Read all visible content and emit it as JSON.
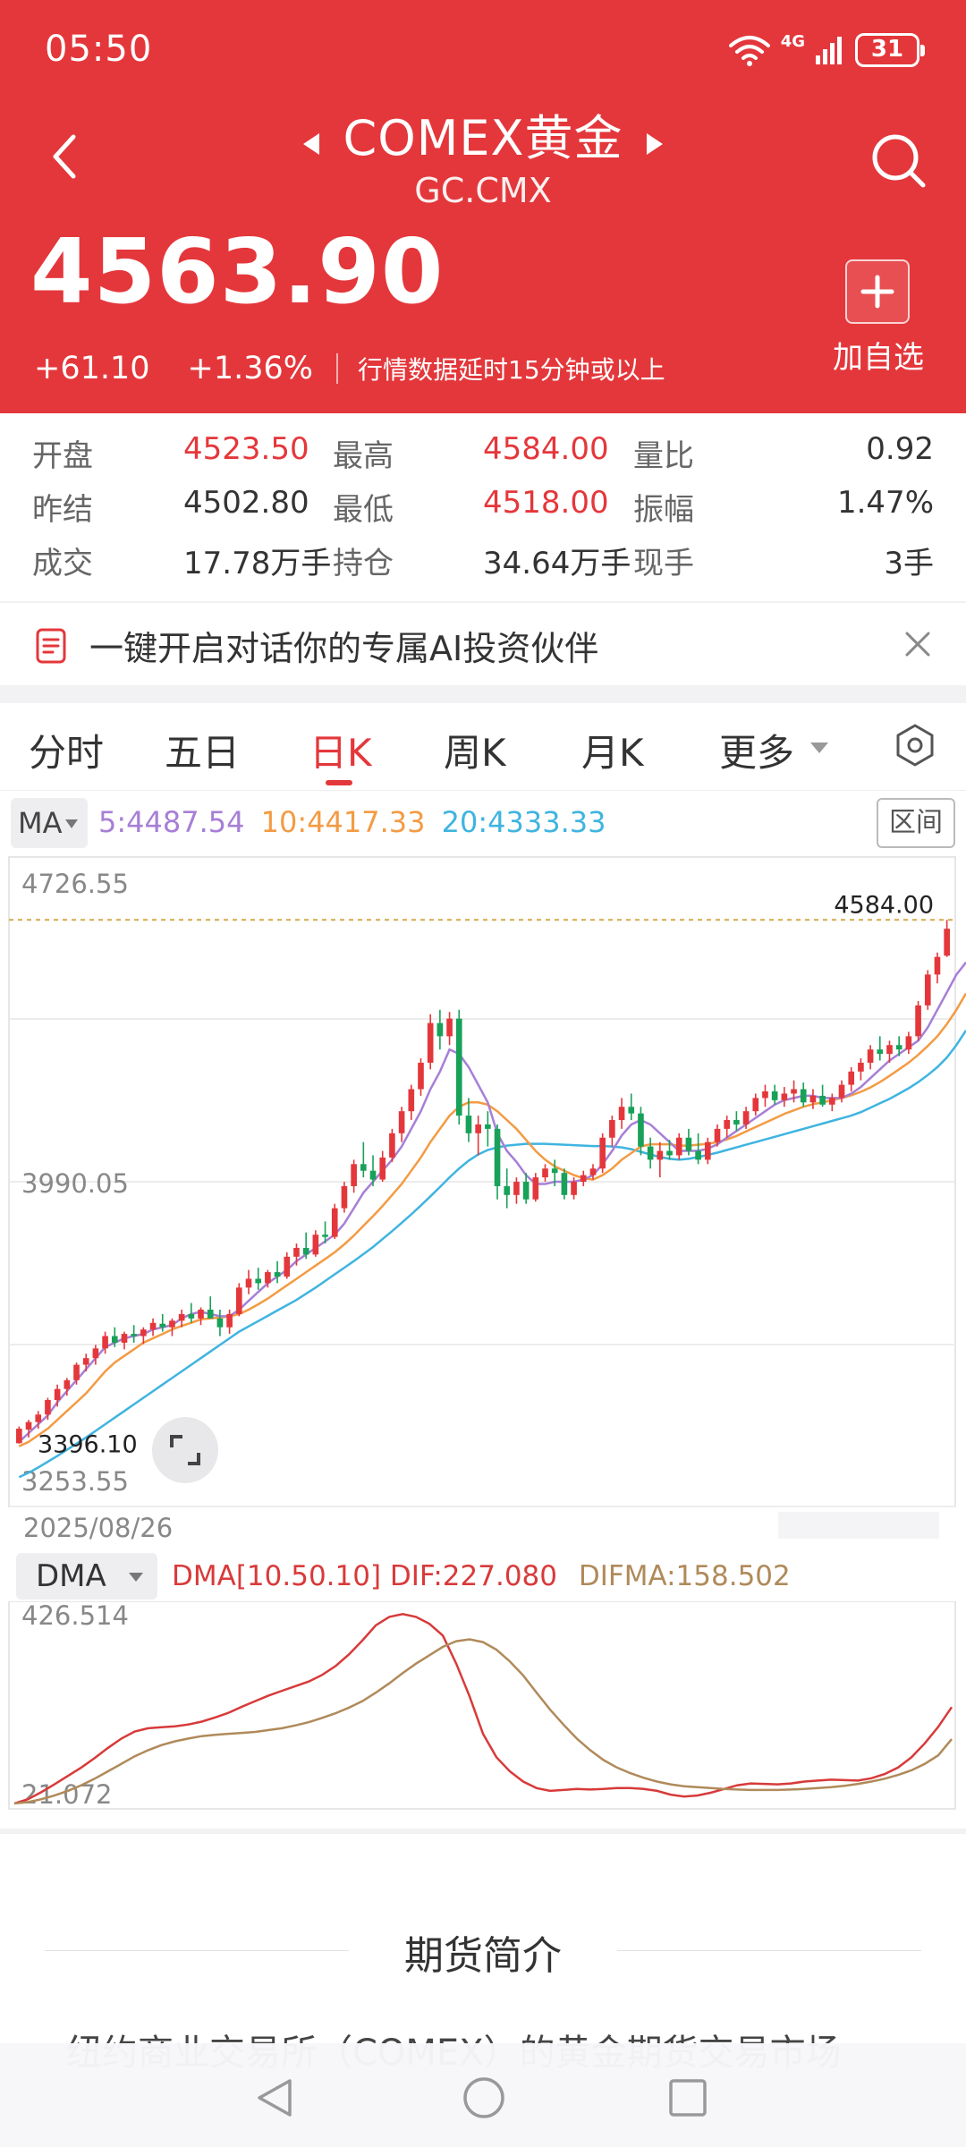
{
  "status_bar": {
    "time": "05:50",
    "network": "4G",
    "battery": "31"
  },
  "header": {
    "title": "COMEX黄金",
    "subtitle": "GC.CMX",
    "price": "4563.90",
    "change": "+61.10",
    "change_pct": "+1.36%",
    "delay_note": "行情数据延时15分钟或以上",
    "add_label": "加自选",
    "icons": {
      "back": "chevron-left",
      "prev": "triangle-left",
      "next": "triangle-right",
      "search": "search",
      "add": "plus"
    }
  },
  "stats": {
    "open_label": "开盘",
    "open": "4523.50",
    "high_label": "最高",
    "high": "4584.00",
    "vol_ratio_label": "量比",
    "vol_ratio": "0.92",
    "prev_settle_label": "昨结",
    "prev_settle": "4502.80",
    "low_label": "最低",
    "low": "4518.00",
    "amplitude_label": "振幅",
    "amplitude": "1.47%",
    "volume_label": "成交",
    "volume": "17.78万手",
    "open_interest_label": "持仓",
    "open_interest": "34.64万手",
    "current_label": "现手",
    "current": "3手"
  },
  "ai_banner": {
    "text": "一键开启对话你的专属AI投资伙伴"
  },
  "tabs": [
    {
      "label": "分时"
    },
    {
      "label": "五日"
    },
    {
      "label": "日K",
      "active": true
    },
    {
      "label": "周K"
    },
    {
      "label": "月K"
    },
    {
      "label": "更多"
    }
  ],
  "ma": {
    "selector": "MA",
    "ma5": "5:4487.54",
    "ma10": "10:4417.33",
    "ma20": "20:4333.33",
    "range_button": "区间"
  },
  "colors": {
    "up": "#e4373b",
    "down": "#18a159",
    "ma5": "#a77fd6",
    "ma10": "#f39b43",
    "ma20": "#3fb4e0",
    "dif": "#d83a3a",
    "difma": "#b08a5a"
  },
  "chart_data": [
    {
      "type": "candlestick",
      "y_ticks": [
        "4726.55",
        "3990.05",
        "3253.55"
      ],
      "ylim": [
        3253.55,
        4726.55
      ],
      "max_label": "4584.00",
      "min_label": "3396.10",
      "start_date": "2025/08/26",
      "candles": [
        {
          "o": 3397,
          "h": 3435,
          "l": 3396.1,
          "c": 3430
        },
        {
          "o": 3428,
          "h": 3450,
          "l": 3410,
          "c": 3445
        },
        {
          "o": 3445,
          "h": 3470,
          "l": 3430,
          "c": 3462
        },
        {
          "o": 3462,
          "h": 3500,
          "l": 3450,
          "c": 3495
        },
        {
          "o": 3495,
          "h": 3530,
          "l": 3480,
          "c": 3520
        },
        {
          "o": 3520,
          "h": 3545,
          "l": 3505,
          "c": 3540
        },
        {
          "o": 3540,
          "h": 3580,
          "l": 3530,
          "c": 3575
        },
        {
          "o": 3575,
          "h": 3600,
          "l": 3560,
          "c": 3590
        },
        {
          "o": 3590,
          "h": 3620,
          "l": 3575,
          "c": 3612
        },
        {
          "o": 3612,
          "h": 3650,
          "l": 3600,
          "c": 3640
        },
        {
          "o": 3640,
          "h": 3660,
          "l": 3615,
          "c": 3625
        },
        {
          "o": 3625,
          "h": 3650,
          "l": 3610,
          "c": 3645
        },
        {
          "o": 3645,
          "h": 3665,
          "l": 3625,
          "c": 3640
        },
        {
          "o": 3640,
          "h": 3660,
          "l": 3622,
          "c": 3655
        },
        {
          "o": 3655,
          "h": 3680,
          "l": 3640,
          "c": 3670
        },
        {
          "o": 3668,
          "h": 3690,
          "l": 3650,
          "c": 3660
        },
        {
          "o": 3660,
          "h": 3680,
          "l": 3640,
          "c": 3675
        },
        {
          "o": 3675,
          "h": 3700,
          "l": 3660,
          "c": 3690
        },
        {
          "o": 3690,
          "h": 3715,
          "l": 3670,
          "c": 3680
        },
        {
          "o": 3680,
          "h": 3705,
          "l": 3665,
          "c": 3700
        },
        {
          "o": 3700,
          "h": 3730,
          "l": 3690,
          "c": 3680
        },
        {
          "o": 3680,
          "h": 3700,
          "l": 3640,
          "c": 3660
        },
        {
          "o": 3660,
          "h": 3700,
          "l": 3645,
          "c": 3690
        },
        {
          "o": 3690,
          "h": 3760,
          "l": 3685,
          "c": 3750
        },
        {
          "o": 3750,
          "h": 3790,
          "l": 3735,
          "c": 3770
        },
        {
          "o": 3770,
          "h": 3795,
          "l": 3745,
          "c": 3760
        },
        {
          "o": 3760,
          "h": 3790,
          "l": 3750,
          "c": 3785
        },
        {
          "o": 3785,
          "h": 3810,
          "l": 3760,
          "c": 3775
        },
        {
          "o": 3775,
          "h": 3830,
          "l": 3770,
          "c": 3820
        },
        {
          "o": 3820,
          "h": 3850,
          "l": 3800,
          "c": 3840
        },
        {
          "o": 3840,
          "h": 3875,
          "l": 3815,
          "c": 3825
        },
        {
          "o": 3825,
          "h": 3880,
          "l": 3820,
          "c": 3870
        },
        {
          "o": 3870,
          "h": 3900,
          "l": 3850,
          "c": 3865
        },
        {
          "o": 3865,
          "h": 3940,
          "l": 3860,
          "c": 3930
        },
        {
          "o": 3930,
          "h": 3990,
          "l": 3920,
          "c": 3980
        },
        {
          "o": 3980,
          "h": 4040,
          "l": 3965,
          "c": 4030
        },
        {
          "o": 4030,
          "h": 4080,
          "l": 4000,
          "c": 4015
        },
        {
          "o": 4015,
          "h": 4050,
          "l": 3980,
          "c": 3995
        },
        {
          "o": 3995,
          "h": 4060,
          "l": 3990,
          "c": 4045
        },
        {
          "o": 4045,
          "h": 4110,
          "l": 4035,
          "c": 4100
        },
        {
          "o": 4100,
          "h": 4160,
          "l": 4080,
          "c": 4150
        },
        {
          "o": 4150,
          "h": 4210,
          "l": 4130,
          "c": 4200
        },
        {
          "o": 4200,
          "h": 4270,
          "l": 4185,
          "c": 4260
        },
        {
          "o": 4260,
          "h": 4370,
          "l": 4245,
          "c": 4350
        },
        {
          "o": 4350,
          "h": 4380,
          "l": 4290,
          "c": 4320
        },
        {
          "o": 4320,
          "h": 4375,
          "l": 4300,
          "c": 4360
        },
        {
          "o": 4360,
          "h": 4380,
          "l": 4120,
          "c": 4140
        },
        {
          "o": 4140,
          "h": 4180,
          "l": 4080,
          "c": 4100
        },
        {
          "o": 4100,
          "h": 4140,
          "l": 4050,
          "c": 4120
        },
        {
          "o": 4120,
          "h": 4150,
          "l": 4070,
          "c": 4110
        },
        {
          "o": 4110,
          "h": 4120,
          "l": 3950,
          "c": 3980
        },
        {
          "o": 3980,
          "h": 4020,
          "l": 3930,
          "c": 3960
        },
        {
          "o": 3960,
          "h": 4000,
          "l": 3940,
          "c": 3990
        },
        {
          "o": 3990,
          "h": 4010,
          "l": 3940,
          "c": 3950
        },
        {
          "o": 3950,
          "h": 4010,
          "l": 3945,
          "c": 4000
        },
        {
          "o": 4000,
          "h": 4030,
          "l": 3990,
          "c": 4020
        },
        {
          "o": 4020,
          "h": 4040,
          "l": 3980,
          "c": 4010
        },
        {
          "o": 4010,
          "h": 4020,
          "l": 3950,
          "c": 3960
        },
        {
          "o": 3960,
          "h": 4000,
          "l": 3950,
          "c": 3990
        },
        {
          "o": 3990,
          "h": 4015,
          "l": 3980,
          "c": 4005
        },
        {
          "o": 4005,
          "h": 4030,
          "l": 3995,
          "c": 4020
        },
        {
          "o": 4020,
          "h": 4100,
          "l": 4010,
          "c": 4090
        },
        {
          "o": 4090,
          "h": 4140,
          "l": 4070,
          "c": 4130
        },
        {
          "o": 4130,
          "h": 4180,
          "l": 4110,
          "c": 4160
        },
        {
          "o": 4160,
          "h": 4190,
          "l": 4130,
          "c": 4145
        },
        {
          "o": 4145,
          "h": 4160,
          "l": 4050,
          "c": 4070
        },
        {
          "o": 4070,
          "h": 4090,
          "l": 4020,
          "c": 4040
        },
        {
          "o": 4040,
          "h": 4080,
          "l": 4000,
          "c": 4060
        },
        {
          "o": 4060,
          "h": 4085,
          "l": 4040,
          "c": 4050
        },
        {
          "o": 4050,
          "h": 4100,
          "l": 4040,
          "c": 4090
        },
        {
          "o": 4090,
          "h": 4110,
          "l": 4050,
          "c": 4060
        },
        {
          "o": 4060,
          "h": 4100,
          "l": 4030,
          "c": 4040
        },
        {
          "o": 4040,
          "h": 4090,
          "l": 4030,
          "c": 4080
        },
        {
          "o": 4080,
          "h": 4120,
          "l": 4070,
          "c": 4110
        },
        {
          "o": 4110,
          "h": 4140,
          "l": 4090,
          "c": 4130
        },
        {
          "o": 4130,
          "h": 4150,
          "l": 4105,
          "c": 4120
        },
        {
          "o": 4120,
          "h": 4160,
          "l": 4110,
          "c": 4150
        },
        {
          "o": 4150,
          "h": 4190,
          "l": 4140,
          "c": 4180
        },
        {
          "o": 4180,
          "h": 4210,
          "l": 4160,
          "c": 4195
        },
        {
          "o": 4195,
          "h": 4210,
          "l": 4165,
          "c": 4175
        },
        {
          "o": 4175,
          "h": 4205,
          "l": 4160,
          "c": 4190
        },
        {
          "o": 4190,
          "h": 4220,
          "l": 4170,
          "c": 4200
        },
        {
          "o": 4200,
          "h": 4215,
          "l": 4160,
          "c": 4170
        },
        {
          "o": 4170,
          "h": 4200,
          "l": 4155,
          "c": 4185
        },
        {
          "o": 4185,
          "h": 4210,
          "l": 4160,
          "c": 4165
        },
        {
          "o": 4165,
          "h": 4190,
          "l": 4150,
          "c": 4180
        },
        {
          "o": 4180,
          "h": 4220,
          "l": 4170,
          "c": 4210
        },
        {
          "o": 4210,
          "h": 4250,
          "l": 4195,
          "c": 4240
        },
        {
          "o": 4240,
          "h": 4270,
          "l": 4220,
          "c": 4260
        },
        {
          "o": 4260,
          "h": 4300,
          "l": 4245,
          "c": 4290
        },
        {
          "o": 4290,
          "h": 4320,
          "l": 4265,
          "c": 4280
        },
        {
          "o": 4280,
          "h": 4310,
          "l": 4260,
          "c": 4300
        },
        {
          "o": 4300,
          "h": 4320,
          "l": 4275,
          "c": 4290
        },
        {
          "o": 4290,
          "h": 4330,
          "l": 4280,
          "c": 4320
        },
        {
          "o": 4320,
          "h": 4400,
          "l": 4310,
          "c": 4390
        },
        {
          "o": 4390,
          "h": 4470,
          "l": 4380,
          "c": 4460
        },
        {
          "o": 4460,
          "h": 4510,
          "l": 4440,
          "c": 4500
        },
        {
          "o": 4502.8,
          "h": 4584,
          "l": 4500,
          "c": 4563.9
        }
      ],
      "ma5": [
        3400,
        3420,
        3440,
        3460,
        3490,
        3515,
        3540,
        3565,
        3590,
        3615,
        3625,
        3635,
        3640,
        3645,
        3655,
        3660,
        3665,
        3680,
        3690,
        3695,
        3690,
        3685,
        3685,
        3700,
        3720,
        3740,
        3760,
        3775,
        3790,
        3810,
        3825,
        3840,
        3855,
        3870,
        3895,
        3930,
        3965,
        3990,
        4015,
        4040,
        4070,
        4110,
        4150,
        4200,
        4240,
        4290,
        4280,
        4250,
        4210,
        4170,
        4100,
        4060,
        4035,
        4005,
        3985,
        3985,
        3990,
        3990,
        3990,
        3995,
        4005,
        4030,
        4060,
        4095,
        4120,
        4130,
        4120,
        4100,
        4080,
        4060,
        4060,
        4060,
        4065,
        4075,
        4090,
        4105,
        4120,
        4135,
        4150,
        4165,
        4175,
        4180,
        4185,
        4185,
        4180,
        4180,
        4180,
        4190,
        4205,
        4225,
        4245,
        4265,
        4280,
        4295,
        4310,
        4340,
        4380,
        4420,
        4460,
        4487.54
      ],
      "ma10": [
        3390,
        3400,
        3415,
        3430,
        3450,
        3470,
        3490,
        3510,
        3535,
        3560,
        3580,
        3595,
        3610,
        3625,
        3635,
        3645,
        3655,
        3663,
        3670,
        3678,
        3680,
        3682,
        3685,
        3690,
        3700,
        3712,
        3725,
        3740,
        3755,
        3770,
        3785,
        3800,
        3815,
        3830,
        3848,
        3868,
        3890,
        3912,
        3935,
        3960,
        3985,
        4015,
        4045,
        4080,
        4110,
        4140,
        4160,
        4170,
        4170,
        4165,
        4150,
        4130,
        4110,
        4085,
        4060,
        4040,
        4025,
        4015,
        4005,
        3998,
        3995,
        4005,
        4020,
        4040,
        4055,
        4070,
        4075,
        4075,
        4075,
        4072,
        4072,
        4074,
        4076,
        4080,
        4086,
        4094,
        4104,
        4114,
        4124,
        4134,
        4144,
        4152,
        4160,
        4166,
        4170,
        4175,
        4180,
        4186,
        4194,
        4204,
        4216,
        4230,
        4245,
        4260,
        4278,
        4298,
        4320,
        4348,
        4380,
        4417.33
      ],
      "ma20": [
        3320,
        3330,
        3342,
        3355,
        3368,
        3382,
        3396,
        3410,
        3425,
        3440,
        3455,
        3470,
        3485,
        3500,
        3515,
        3530,
        3545,
        3560,
        3575,
        3590,
        3605,
        3620,
        3635,
        3650,
        3662,
        3674,
        3686,
        3698,
        3710,
        3722,
        3736,
        3750,
        3765,
        3780,
        3795,
        3810,
        3826,
        3842,
        3860,
        3878,
        3897,
        3916,
        3936,
        3957,
        3978,
        4000,
        4020,
        4038,
        4052,
        4062,
        4068,
        4072,
        4074,
        4076,
        4076,
        4076,
        4075,
        4074,
        4073,
        4072,
        4071,
        4071,
        4070,
        4068,
        4064,
        4058,
        4052,
        4046,
        4042,
        4040,
        4042,
        4046,
        4051,
        4056,
        4062,
        4068,
        4074,
        4080,
        4086,
        4092,
        4098,
        4104,
        4110,
        4116,
        4122,
        4128,
        4134,
        4140,
        4148,
        4158,
        4168,
        4178,
        4190,
        4202,
        4216,
        4232,
        4250,
        4272,
        4300,
        4333.33
      ]
    },
    {
      "type": "line",
      "title": "DMA[10.50.10] DIF:227.080 DIFMA:158.502",
      "y_ticks": [
        "426.514",
        "21.072"
      ],
      "ylim": [
        21.072,
        426.514
      ],
      "series": [
        {
          "name": "DIF",
          "values": [
            21,
            30,
            45,
            62,
            80,
            98,
            118,
            140,
            160,
            175,
            182,
            184,
            186,
            190,
            196,
            205,
            215,
            228,
            240,
            252,
            262,
            272,
            282,
            296,
            315,
            340,
            370,
            402,
            420,
            426,
            420,
            405,
            380,
            320,
            250,
            170,
            120,
            90,
            68,
            54,
            48,
            50,
            52,
            51,
            52,
            54,
            54,
            52,
            48,
            40,
            36,
            38,
            44,
            52,
            60,
            64,
            63,
            62,
            64,
            68,
            70,
            72,
            71,
            70,
            75,
            84,
            98,
            120,
            150,
            185,
            227.08
          ]
        },
        {
          "name": "DIFMA",
          "values": [
            21,
            24,
            30,
            38,
            48,
            60,
            74,
            90,
            106,
            122,
            135,
            146,
            154,
            160,
            165,
            168,
            170,
            172,
            174,
            178,
            182,
            188,
            195,
            204,
            214,
            226,
            240,
            258,
            278,
            300,
            320,
            338,
            356,
            368,
            372,
            366,
            350,
            325,
            295,
            258,
            222,
            190,
            160,
            135,
            114,
            98,
            86,
            76,
            68,
            62,
            58,
            56,
            54,
            52,
            51,
            50,
            50,
            50,
            51,
            52,
            54,
            56,
            59,
            63,
            68,
            74,
            82,
            92,
            106,
            124,
            158.502
          ]
        }
      ]
    }
  ],
  "dma": {
    "selector": "DMA",
    "title": "DMA[10.50.10]",
    "dif": "DIF:227.080",
    "difma": "DIFMA:158.502"
  },
  "intro": {
    "title": "期货简介",
    "text": "纽约商业交易所（COMEX）的黄金期货交易市场"
  }
}
